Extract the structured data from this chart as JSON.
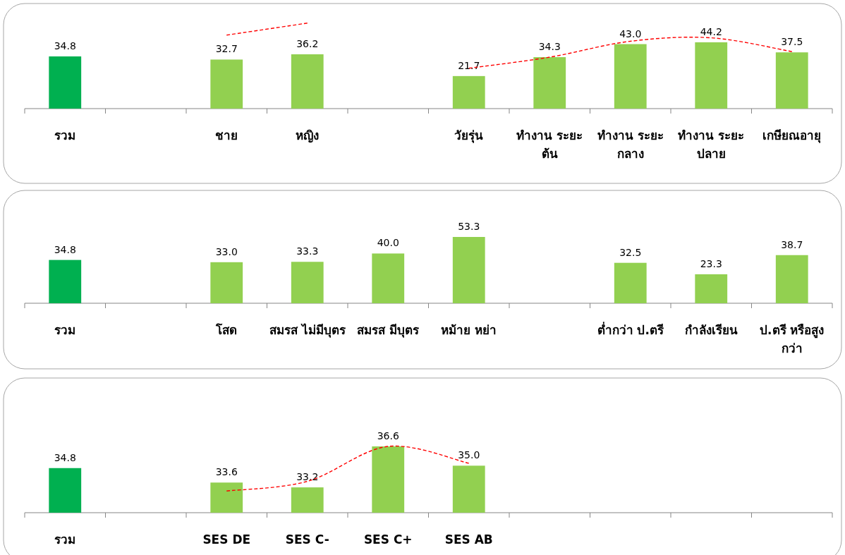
{
  "chart_data": [
    {
      "type": "bar",
      "categories": [
        "รวม",
        null,
        "ชาย",
        "หญิง",
        null,
        "วัยรุ่น",
        "ทำงาน ระยะต้น",
        "ทำงาน ระยะกลาง",
        "ทำงาน ระยะปลาย",
        "เกษียณอายุ"
      ],
      "tick_labels": "x",
      "series": [
        {
          "values": [
            34.8,
            null,
            32.7,
            36.2,
            null,
            21.7,
            34.3,
            43.0,
            44.2,
            37.5
          ],
          "value_labels": [
            "34.8",
            null,
            "32.7",
            "36.2",
            null,
            "21.7",
            "34.3",
            "43.0",
            "44.2",
            "37.5"
          ],
          "colors": [
            "#00b050",
            null,
            "#92d050",
            "#92d050",
            null,
            "#92d050",
            "#92d050",
            "#92d050",
            "#92d050",
            "#92d050"
          ]
        },
        {
          "type": "line",
          "color": "#ff0000",
          "line_style": "dashed",
          "values": [
            null,
            null,
            49,
            57,
            null,
            null,
            null,
            null,
            null,
            null
          ]
        },
        {
          "type": "line",
          "color": "#ff0000",
          "line_style": "dashed",
          "values": [
            null,
            null,
            null,
            null,
            null,
            26.9,
            34.3,
            44.9,
            47.2,
            38.0
          ]
        }
      ]
    },
    {
      "type": "bar",
      "categories": [
        "รวม",
        null,
        "โสด",
        "สมรส ไม่มีบุตร",
        "สมรส มีบุตร",
        "หม้าย หย่า",
        null,
        "ต่ำกว่า ป.ตรี",
        "กำลังเรียน",
        "ป.ตรี หรือสูงกว่า"
      ],
      "tick_labels": "x",
      "series": [
        {
          "values": [
            34.8,
            null,
            33.0,
            33.3,
            40.0,
            53.3,
            null,
            32.5,
            23.3,
            38.7
          ],
          "value_labels": [
            "34.8",
            null,
            "33.0",
            "33.3",
            "40.0",
            "53.3",
            null,
            "32.5",
            "23.3",
            "38.7"
          ],
          "colors": [
            "#00b050",
            null,
            "#92d050",
            "#92d050",
            "#92d050",
            "#92d050",
            null,
            "#92d050",
            "#92d050",
            "#92d050"
          ]
        }
      ]
    },
    {
      "type": "bar",
      "categories": [
        "รวม",
        null,
        "SES DE",
        "SES C-",
        "SES C+",
        "SES AB",
        null,
        null,
        null,
        null
      ],
      "ylim": [
        31.1,
        36.6
      ],
      "tick_labels": "x",
      "series": [
        {
          "values": [
            34.8,
            null,
            33.6,
            33.2,
            36.6,
            35.0,
            null,
            null,
            null,
            null
          ],
          "value_labels": [
            "34.8",
            null,
            "33.6",
            "33.2",
            "36.6",
            "35.0",
            null,
            null,
            null,
            null
          ],
          "colors": [
            "#00b050",
            null,
            "#92d050",
            "#92d050",
            "#92d050",
            "#92d050",
            null,
            null,
            null,
            null
          ]
        },
        {
          "type": "line",
          "color": "#ff0000",
          "line_style": "dashed",
          "values": [
            null,
            null,
            32.9,
            33.7,
            36.6,
            35.2,
            null,
            null,
            null,
            null
          ]
        }
      ]
    }
  ]
}
